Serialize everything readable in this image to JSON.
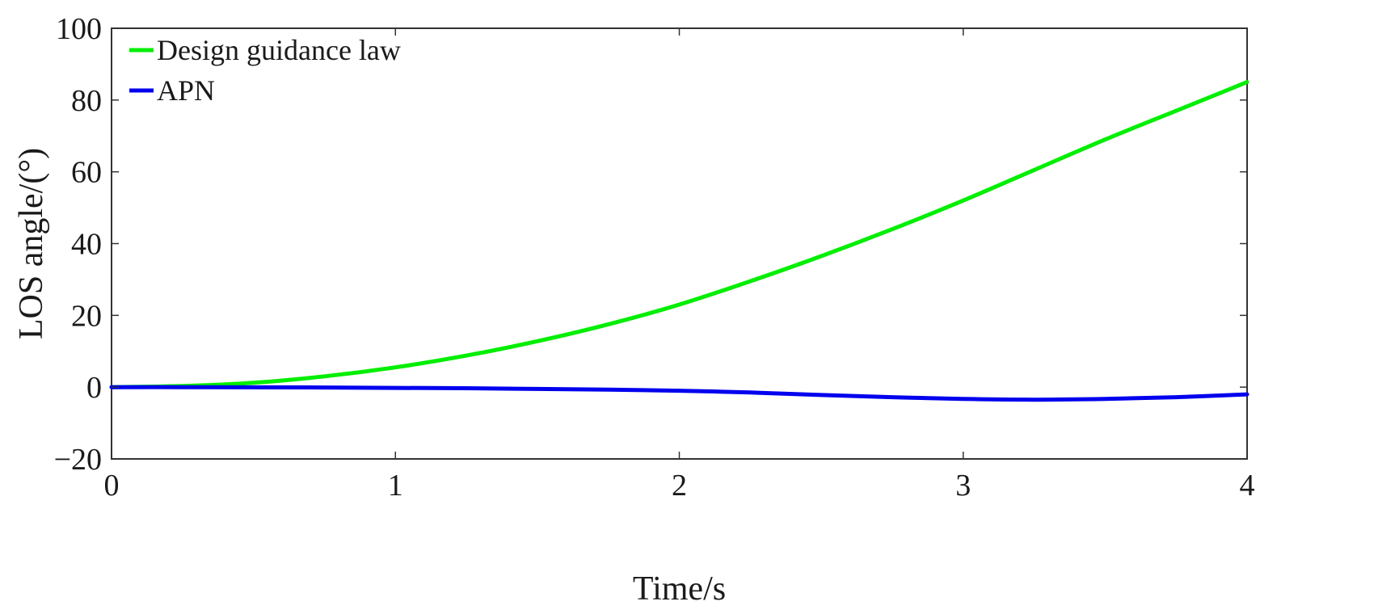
{
  "chart_data": {
    "type": "line",
    "xlabel": "Time/s",
    "ylabel": "LOS angle/(°)",
    "xlim": [
      0,
      4
    ],
    "ylim": [
      -20,
      100
    ],
    "xticks": [
      0,
      1,
      2,
      3,
      4
    ],
    "yticks": [
      -20,
      0,
      20,
      40,
      60,
      80,
      100
    ],
    "xtick_labels": [
      "0",
      "1",
      "2",
      "3",
      "4"
    ],
    "ytick_labels": [
      "−20",
      "0",
      "20",
      "40",
      "60",
      "80",
      "100"
    ],
    "grid": false,
    "legend_position": "top-left",
    "series": [
      {
        "name": "Design guidance law",
        "color": "#00ee00",
        "x": [
          0,
          0.25,
          0.5,
          0.75,
          1.0,
          1.25,
          1.5,
          1.75,
          2.0,
          2.25,
          2.5,
          2.75,
          3.0,
          3.25,
          3.5,
          3.75,
          4.0
        ],
        "y": [
          0,
          0.3,
          1.2,
          3.0,
          5.5,
          8.8,
          12.8,
          17.5,
          23.0,
          29.5,
          36.5,
          44.0,
          52.0,
          60.5,
          69.0,
          77.0,
          85.0
        ]
      },
      {
        "name": "APN",
        "color": "#0000ee",
        "x": [
          0,
          0.25,
          0.5,
          0.75,
          1.0,
          1.25,
          1.5,
          1.75,
          2.0,
          2.25,
          2.5,
          2.75,
          3.0,
          3.25,
          3.5,
          3.75,
          4.0
        ],
        "y": [
          0,
          0,
          -0.05,
          -0.1,
          -0.2,
          -0.3,
          -0.5,
          -0.7,
          -1.0,
          -1.5,
          -2.2,
          -2.8,
          -3.3,
          -3.5,
          -3.3,
          -2.8,
          -2.0
        ]
      }
    ]
  }
}
